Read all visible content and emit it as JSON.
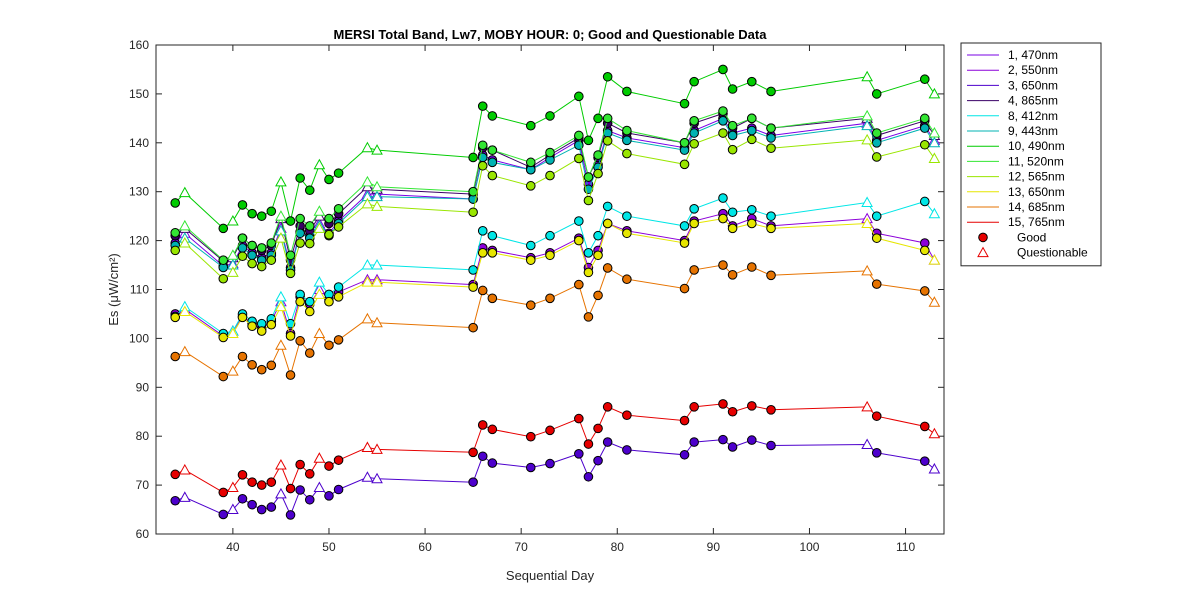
{
  "chart_data": {
    "type": "line",
    "title": "MERSI Total Band,  Lw7, MOBY HOUR: 0;  Good and Questionable Data",
    "xlabel": "Sequential Day",
    "ylabel": "Es (μW/cm²)",
    "xlim": [
      32,
      114
    ],
    "ylim": [
      60,
      160
    ],
    "xticks": [
      "40",
      "50",
      "60",
      "70",
      "80",
      "90",
      "100",
      "110"
    ],
    "yticks": [
      "60",
      "70",
      "80",
      "90",
      "100",
      "110",
      "120",
      "130",
      "140",
      "150",
      "160"
    ],
    "grid": false,
    "legend_position": "outside-right",
    "legend_markers": [
      {
        "label": "Good",
        "marker": "circle"
      },
      {
        "label": "Questionable",
        "marker": "triangle"
      }
    ],
    "x": [
      34,
      35,
      39,
      40,
      41,
      42,
      43,
      44,
      45,
      46,
      47,
      48,
      49,
      50,
      51,
      54,
      55,
      65,
      66,
      67,
      71,
      73,
      76,
      77,
      78,
      79,
      81,
      87,
      88,
      91,
      92,
      94,
      96,
      106,
      107,
      112,
      113
    ],
    "questionable_indices": [
      1,
      3,
      8,
      12,
      15,
      16,
      33,
      36
    ],
    "series": [
      {
        "name": "1, 470nm",
        "color": "#7a00e6",
        "values": [
          119.5,
          121.5,
          114.8,
          115.3,
          119,
          117.5,
          116.5,
          117.5,
          122.5,
          114.5,
          121.8,
          121,
          123.5,
          121.5,
          124,
          129.5,
          129.5,
          128.5,
          137.5,
          136.5,
          134.5,
          137,
          140.5,
          131.5,
          135.5,
          142.5,
          141,
          139,
          142.5,
          145,
          142,
          143,
          141.5,
          144,
          140.5,
          143.5,
          140.5
        ]
      },
      {
        "name": "2, 550nm",
        "color": "#8c00d9",
        "values": [
          105,
          106,
          100.5,
          101.5,
          104.5,
          103,
          102,
          103.5,
          107.5,
          101,
          108.5,
          107,
          110,
          108,
          109.5,
          112,
          112,
          111,
          118.5,
          118,
          116.5,
          117.5,
          120.5,
          114.5,
          118,
          123.5,
          122,
          120,
          124,
          125.5,
          123,
          124.5,
          123,
          124.5,
          121.5,
          119.5,
          116
        ]
      },
      {
        "name": "3, 650nm",
        "color": "#4d00cc",
        "values": [
          66.8,
          67.5,
          64,
          65,
          67.2,
          66,
          65,
          65.5,
          68.2,
          63.9,
          69,
          67,
          69.5,
          67.8,
          69.1,
          71.6,
          71.3,
          70.6,
          75.9,
          74.5,
          73.6,
          74.4,
          76.4,
          71.7,
          75,
          78.8,
          77.2,
          76.2,
          78.8,
          79.3,
          77.8,
          79.2,
          78.1,
          78.3,
          76.6,
          74.9,
          73.3
        ]
      },
      {
        "name": "4, 865nm",
        "color": "#3a0066",
        "values": [
          121,
          122.5,
          115.8,
          116.5,
          120.5,
          119,
          118,
          119,
          124.5,
          116,
          123,
          122,
          125,
          123.5,
          125.5,
          131,
          130.5,
          129.5,
          139,
          138.5,
          135,
          137.5,
          141,
          133,
          137,
          144,
          142,
          140,
          144,
          146,
          143,
          145,
          143,
          145,
          141.5,
          144.5,
          141.5
        ]
      },
      {
        "name": "8, 412nm",
        "color": "#00e6e6",
        "values": [
          104.5,
          106.5,
          101,
          101.5,
          105,
          103.5,
          103,
          104,
          108.5,
          103,
          109,
          107.5,
          111.5,
          109,
          110.5,
          115,
          115,
          114,
          122,
          121,
          119,
          121,
          124,
          117.5,
          121,
          127,
          125,
          123,
          126.5,
          128.7,
          125.8,
          126.3,
          125,
          127.8,
          125,
          128,
          125.5
        ]
      },
      {
        "name": "9, 443nm",
        "color": "#00b3b3",
        "values": [
          119,
          120.5,
          114.5,
          115,
          118.5,
          117,
          116,
          117,
          122,
          114,
          121.5,
          120.5,
          123,
          121,
          123.5,
          129,
          129,
          128.5,
          137,
          136,
          134.5,
          136.5,
          139.5,
          130.5,
          135,
          142,
          140.5,
          138.5,
          142,
          144.5,
          141.5,
          142.5,
          141,
          143.5,
          140,
          143,
          140
        ]
      },
      {
        "name": "10, 490nm",
        "color": "#00cc00",
        "values": [
          127.7,
          129.8,
          122.5,
          124,
          127.3,
          125.5,
          125,
          126,
          132,
          124,
          132.8,
          130.3,
          135.5,
          132.5,
          133.8,
          139,
          138.5,
          137,
          147.5,
          145.5,
          143.5,
          145.5,
          149.5,
          140.5,
          145,
          153.5,
          150.5,
          148,
          152.5,
          155,
          151,
          152.5,
          150.5,
          153.5,
          150,
          153,
          150
        ]
      },
      {
        "name": "11, 520nm",
        "color": "#33e633",
        "values": [
          121.6,
          123,
          116,
          117,
          120.5,
          119,
          118.5,
          119.5,
          125,
          117,
          124.5,
          123,
          126,
          124.5,
          126.5,
          132,
          131,
          130,
          139.5,
          138.5,
          136,
          138,
          141.5,
          133,
          137.5,
          145,
          142.5,
          140,
          144.5,
          146.5,
          143.5,
          145,
          143,
          145.5,
          142,
          145,
          142
        ]
      },
      {
        "name": "12, 565nm",
        "color": "#99e600",
        "values": [
          118,
          119.5,
          112.2,
          113.5,
          116.8,
          115.3,
          114.7,
          116,
          120.5,
          113.3,
          119.5,
          119.4,
          122.5,
          121.2,
          122.8,
          127.5,
          127,
          125.8,
          135.3,
          133.3,
          131.2,
          133.3,
          136.8,
          128.2,
          133.7,
          140.4,
          137.8,
          135.6,
          139.8,
          142,
          138.6,
          140.7,
          138.9,
          140.6,
          137.1,
          139.6,
          136.8
        ]
      },
      {
        "name": "13, 650nm",
        "color": "#e6e600",
        "values": [
          104.3,
          105.5,
          100.2,
          101,
          104.3,
          102.5,
          101.5,
          102.8,
          106.5,
          100.5,
          107.5,
          105.5,
          109,
          107.5,
          108.5,
          111.5,
          111.5,
          110.5,
          117.5,
          117.5,
          116,
          117,
          120,
          113.5,
          117,
          123.5,
          121.5,
          119.5,
          123.5,
          124.5,
          122.5,
          123.5,
          122.5,
          123.5,
          120.5,
          118,
          116
        ]
      },
      {
        "name": "14, 685nm",
        "color": "#e67300",
        "values": [
          96.3,
          97.3,
          92.2,
          93.3,
          96.3,
          94.6,
          93.6,
          94.5,
          98.6,
          92.5,
          99.5,
          97,
          101,
          98.6,
          99.7,
          104,
          103.2,
          102.2,
          109.8,
          108.2,
          106.8,
          108.2,
          111,
          104.4,
          108.8,
          114.4,
          112.1,
          110.2,
          114,
          115,
          113,
          114.6,
          112.9,
          113.8,
          111.1,
          109.7,
          107.4
        ]
      },
      {
        "name": "15, 765nm",
        "color": "#e60000",
        "values": [
          72.2,
          73.1,
          68.5,
          69.5,
          72.1,
          70.6,
          70,
          70.6,
          74.1,
          69.3,
          74.2,
          72.3,
          75.5,
          73.9,
          75.1,
          77.7,
          77.3,
          76.7,
          82.3,
          81.4,
          79.9,
          81.2,
          83.6,
          78.4,
          81.6,
          86,
          84.3,
          83.2,
          86,
          86.6,
          85,
          86.2,
          85.4,
          86,
          84.1,
          82,
          80.5
        ]
      }
    ]
  }
}
